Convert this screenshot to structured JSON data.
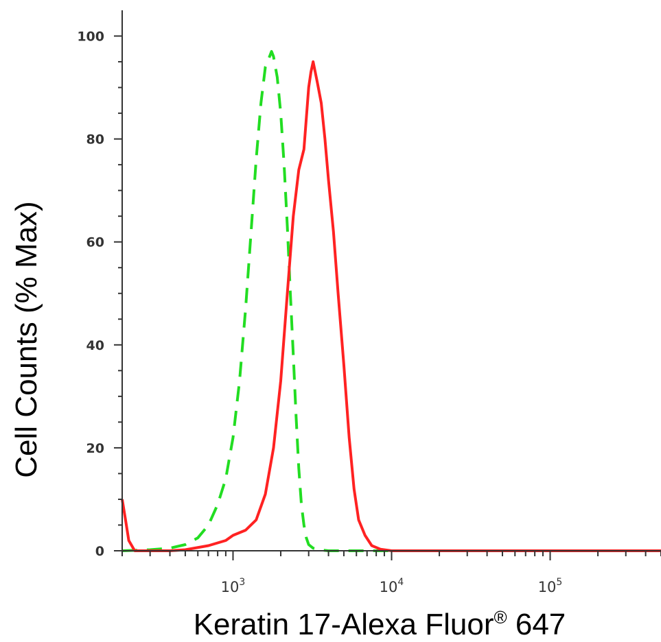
{
  "chart_data": {
    "type": "line",
    "title": "",
    "xlabel": "Keratin 17-Alexa Fluor",
    "xlabel_superscript": "®",
    "xlabel_suffix": " 647",
    "ylabel": "Cell Counts (% Max)",
    "xscale": "log",
    "xlim": [
      200,
      500000
    ],
    "ylim": [
      0,
      105
    ],
    "yticks": [
      {
        "value": 0,
        "label": "0"
      },
      {
        "value": 20,
        "label": "20"
      },
      {
        "value": 40,
        "label": "40"
      },
      {
        "value": 60,
        "label": "60"
      },
      {
        "value": 80,
        "label": "80"
      },
      {
        "value": 100,
        "label": "100"
      }
    ],
    "xticks": [
      {
        "value": 1000,
        "base": "10",
        "exp": "3"
      },
      {
        "value": 10000,
        "base": "10",
        "exp": "4"
      },
      {
        "value": 100000,
        "base": "10",
        "exp": "5"
      }
    ],
    "grid": false,
    "legend": "none",
    "series": [
      {
        "color": "#22dd22",
        "style": "dashed",
        "x": [
          200,
          300,
          400,
          500,
          600,
          700,
          800,
          900,
          1000,
          1100,
          1200,
          1300,
          1400,
          1500,
          1600,
          1700,
          1750,
          1800,
          1900,
          2000,
          2100,
          2200,
          2300,
          2400,
          2500,
          2600,
          2700,
          2800,
          2900,
          3000,
          3200,
          3500,
          4000,
          5000,
          10000,
          100000,
          500000
        ],
        "y": [
          0,
          0.2,
          0.5,
          1.2,
          2.5,
          5,
          9,
          14,
          22,
          33,
          47,
          62,
          76,
          87,
          94,
          96,
          97,
          96,
          92,
          85,
          75,
          63,
          50,
          38,
          26,
          16,
          9,
          5,
          2.5,
          1.2,
          0.5,
          0.2,
          0,
          0,
          0,
          0,
          0
        ]
      },
      {
        "color": "#ff2222",
        "style": "solid",
        "x": [
          200,
          210,
          220,
          240,
          270,
          300,
          400,
          500,
          700,
          900,
          1000,
          1200,
          1400,
          1600,
          1800,
          2000,
          2200,
          2400,
          2600,
          2800,
          3000,
          3100,
          3200,
          3400,
          3600,
          3800,
          4000,
          4300,
          4600,
          5000,
          5400,
          5800,
          6200,
          6800,
          7500,
          8500,
          10000,
          20000,
          100000,
          500000
        ],
        "y": [
          10,
          6,
          2,
          0,
          0,
          0,
          0,
          0.2,
          1,
          2,
          3,
          4,
          6,
          11,
          20,
          33,
          50,
          65,
          74,
          78,
          90,
          93,
          95,
          91,
          87,
          80,
          72,
          62,
          50,
          36,
          22,
          12,
          6,
          3,
          1,
          0.3,
          0,
          0,
          0,
          0
        ]
      }
    ]
  }
}
